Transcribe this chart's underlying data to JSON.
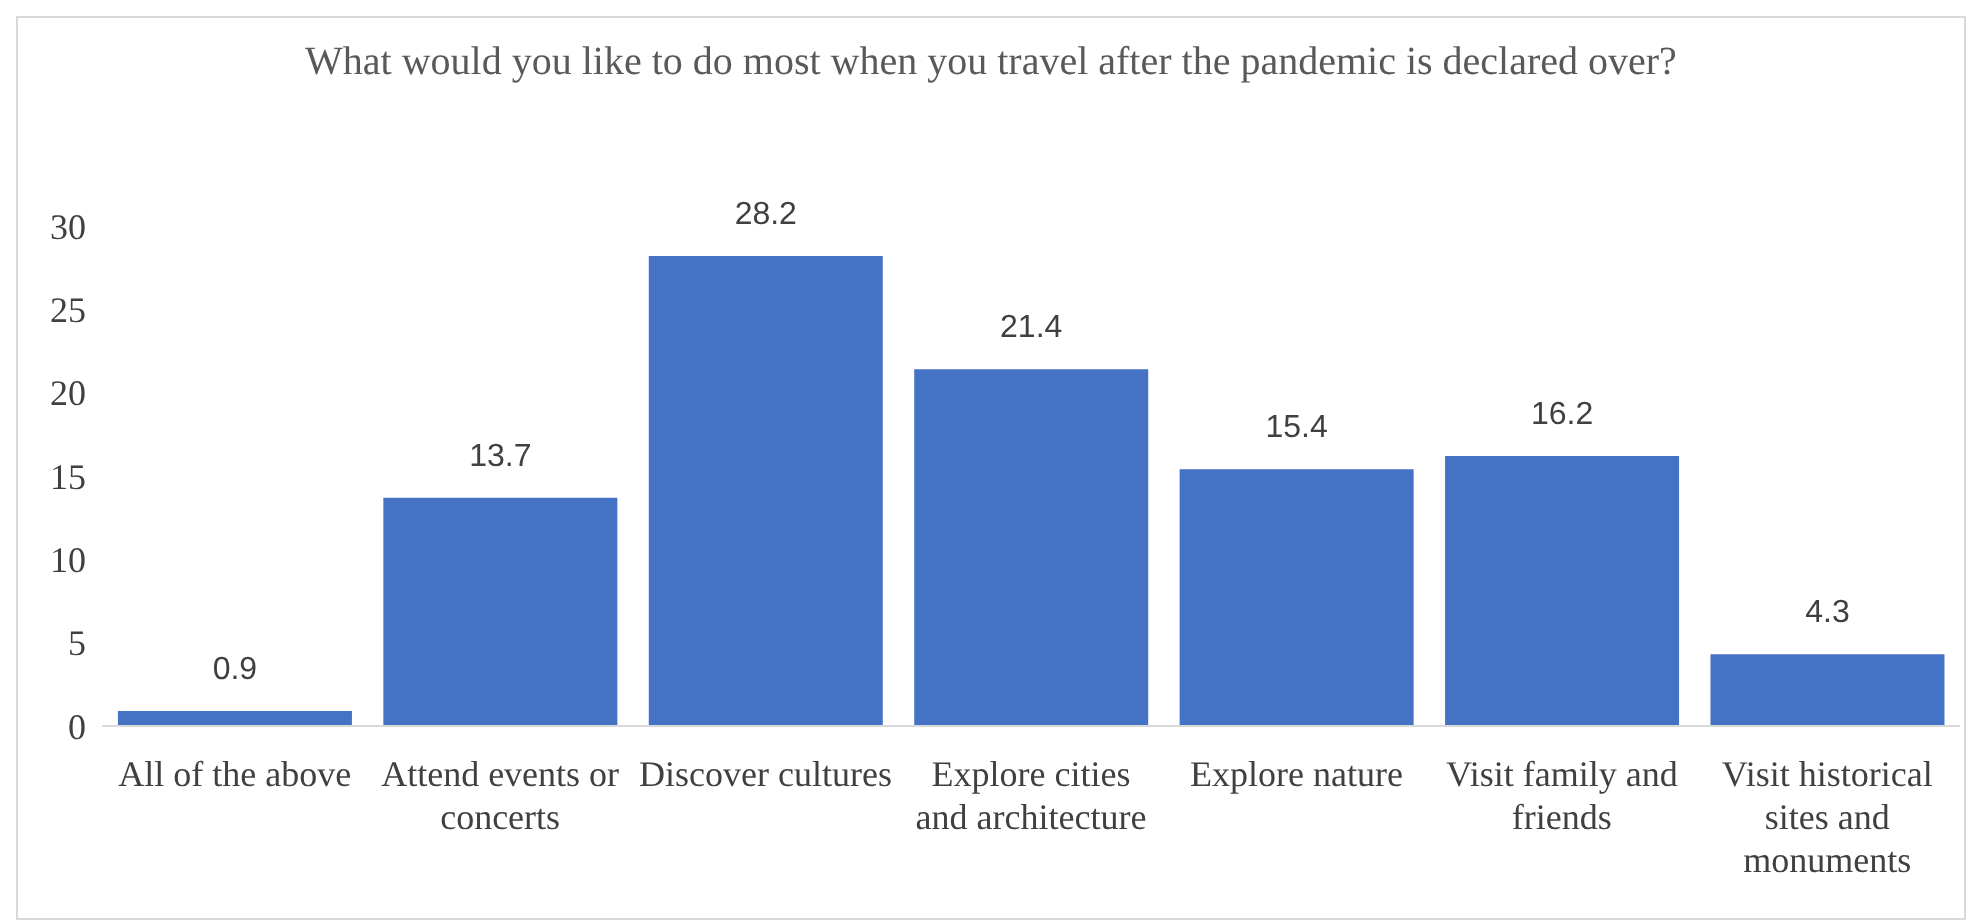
{
  "chart_data": {
    "type": "bar",
    "title": "What would you like to do most when you travel after the pandemic is declared over?",
    "categories": [
      "All of the above",
      "Attend events or concerts",
      "Discover cultures",
      "Explore cities and architecture",
      "Explore nature",
      "Visit family and friends",
      "Visit historical sites and monuments"
    ],
    "values": [
      0.9,
      13.7,
      28.2,
      21.4,
      15.4,
      16.2,
      4.3
    ],
    "color": "#4472c4",
    "ylim": [
      0,
      30
    ],
    "yticks": [
      0,
      5,
      10,
      15,
      20,
      25,
      30
    ],
    "grid": false,
    "data_labels": true
  }
}
